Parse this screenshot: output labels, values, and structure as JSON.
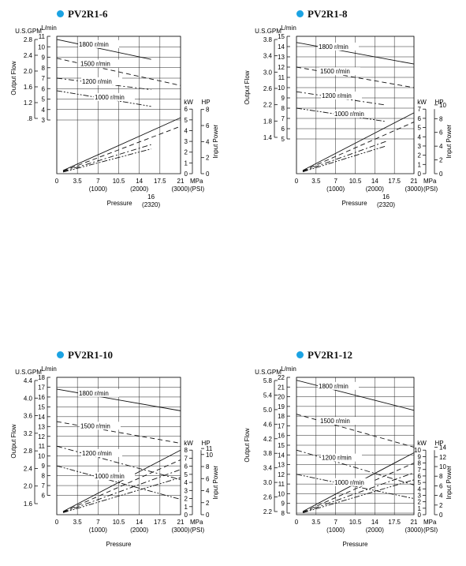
{
  "colors": {
    "accent": "#1ba3e3",
    "line": "#111111",
    "grid": "#222222"
  },
  "common": {
    "mpa_ticks": [
      "0",
      "3.5",
      "7",
      "10.5",
      "14",
      "17.5",
      "21"
    ],
    "psi_ticks": [
      "(1000)",
      "(2000)",
      "(3000)"
    ],
    "mpa_unit": "MPa",
    "psi_unit": "(PSI)",
    "x_title": "Pressure",
    "lmin_unit": "L/min",
    "gpm_unit": "U.S.GPM",
    "kw_unit": "kW",
    "hp_unit": "HP",
    "flow_title": "Output Flow",
    "power_title": "Input Power"
  },
  "chart_data": [
    {
      "type": "line",
      "title": "PV2R1-6",
      "x_unit": "MPa",
      "xlim": [
        0,
        21
      ],
      "extra_x_tick": {
        "mpa": "16",
        "psi": "(2320)"
      },
      "flow_ylim": [
        3,
        11
      ],
      "flow_ticks": [
        "3",
        "4",
        "5",
        "6",
        "7",
        "8",
        "9",
        "10",
        "11"
      ],
      "gpm_ticks": [
        "2.8",
        "2.4",
        "2.0",
        "1.6",
        "1.2",
        ".8"
      ],
      "power_kw_ticks": [
        "0",
        "1",
        "2",
        "3",
        "4",
        "5",
        "6"
      ],
      "power_hp_ticks": [
        "0",
        "2",
        "4",
        "6",
        "8"
      ],
      "series": [
        {
          "name": "1800 r/min",
          "flow": [
            [
              0,
              10.7
            ],
            [
              16,
              8.8
            ]
          ],
          "power_kw": [
            [
              0,
              0.3
            ],
            [
              21,
              5.2
            ]
          ]
        },
        {
          "name": "1500 r/min",
          "flow": [
            [
              0,
              8.9
            ],
            [
              21,
              6.3
            ]
          ],
          "power_kw": [
            [
              0,
              0.25
            ],
            [
              21,
              4.4
            ]
          ]
        },
        {
          "name": "1200 r/min",
          "flow": [
            [
              0,
              7.0
            ],
            [
              16,
              5.9
            ]
          ],
          "power_kw": [
            [
              0,
              0.2
            ],
            [
              16,
              2.7
            ]
          ]
        },
        {
          "name": "1000 r/min",
          "flow": [
            [
              0,
              5.8
            ],
            [
              16,
              4.3
            ]
          ],
          "power_kw": [
            [
              0,
              0.15
            ],
            [
              16,
              2.3
            ]
          ]
        }
      ]
    },
    {
      "type": "line",
      "title": "PV2R1-8",
      "x_unit": "MPa",
      "xlim": [
        0,
        21
      ],
      "extra_x_tick": {
        "mpa": "16",
        "psi": "(2320)"
      },
      "flow_ylim": [
        5,
        15
      ],
      "flow_ticks": [
        "5",
        "6",
        "7",
        "8",
        "9",
        "10",
        "11",
        "12",
        "13",
        "14",
        "15"
      ],
      "gpm_ticks": [
        "3.8",
        "3.4",
        "3.0",
        "2.6",
        "2.2",
        "1.8",
        "1.4"
      ],
      "power_kw_ticks": [
        "0",
        "1",
        "2",
        "3",
        "4",
        "5",
        "6",
        "7"
      ],
      "power_hp_ticks": [
        "0",
        "2",
        "4",
        "6",
        "8",
        "10"
      ],
      "series": [
        {
          "name": "1800 r/min",
          "flow": [
            [
              0,
              14.4
            ],
            [
              21,
              12.3
            ]
          ],
          "power_kw": [
            [
              0,
              0.35
            ],
            [
              21,
              6.6
            ]
          ]
        },
        {
          "name": "1500 r/min",
          "flow": [
            [
              0,
              12.0
            ],
            [
              21,
              10.0
            ]
          ],
          "power_kw": [
            [
              0,
              0.3
            ],
            [
              21,
              5.6
            ]
          ]
        },
        {
          "name": "1200 r/min",
          "flow": [
            [
              0,
              9.6
            ],
            [
              16,
              8.3
            ]
          ],
          "power_kw": [
            [
              0,
              0.25
            ],
            [
              16,
              3.5
            ]
          ]
        },
        {
          "name": "1000 r/min",
          "flow": [
            [
              0,
              8.0
            ],
            [
              16,
              6.7
            ]
          ],
          "power_kw": [
            [
              0,
              0.2
            ],
            [
              16,
              3.0
            ]
          ]
        }
      ]
    },
    {
      "type": "line",
      "title": "PV2R1-10",
      "x_unit": "MPa",
      "xlim": [
        0,
        21
      ],
      "flow_ylim": [
        5,
        18
      ],
      "flow_ticks": [
        "6",
        "7",
        "8",
        "9",
        "10",
        "11",
        "12",
        "13",
        "14",
        "15",
        "16",
        "17",
        "18"
      ],
      "gpm_ticks": [
        "4.4",
        "4.0",
        "3.6",
        "3.2",
        "2.8",
        "2.4",
        "2.0",
        "1.6"
      ],
      "power_kw_ticks": [
        "0",
        "1",
        "2",
        "3",
        "4",
        "5",
        "6",
        "7",
        "8"
      ],
      "power_hp_ticks": [
        "0",
        "2",
        "4",
        "6",
        "8",
        "10",
        "11"
      ],
      "series": [
        {
          "name": "1800 r/min",
          "flow": [
            [
              0,
              16.8
            ],
            [
              21,
              14.6
            ]
          ],
          "power_kw": [
            [
              0,
              0.4
            ],
            [
              21,
              8.0
            ]
          ]
        },
        {
          "name": "1500 r/min",
          "flow": [
            [
              0,
              13.5
            ],
            [
              21,
              11.3
            ]
          ],
          "power_kw": [
            [
              0,
              0.35
            ],
            [
              21,
              6.8
            ]
          ]
        },
        {
          "name": "1200 r/min",
          "flow": [
            [
              0,
              11.0
            ],
            [
              21,
              7.6
            ]
          ],
          "power_kw": [
            [
              0,
              0.3
            ],
            [
              21,
              5.6
            ]
          ]
        },
        {
          "name": "1000 r/min",
          "flow": [
            [
              0,
              9.0
            ],
            [
              21,
              5.6
            ]
          ],
          "power_kw": [
            [
              0,
              0.25
            ],
            [
              21,
              4.6
            ]
          ]
        }
      ]
    },
    {
      "type": "line",
      "title": "PV2R1-12",
      "x_unit": "MPa",
      "xlim": [
        0,
        21
      ],
      "flow_ylim": [
        8,
        22
      ],
      "flow_ticks": [
        "8",
        "9",
        "10",
        "11",
        "12",
        "13",
        "14",
        "15",
        "16",
        "17",
        "18",
        "19",
        "20",
        "21",
        "22"
      ],
      "gpm_ticks": [
        "5.8",
        "5.4",
        "5.0",
        "4.6",
        "4.2",
        "3.8",
        "3.4",
        "3.0",
        "2.6",
        "2.2"
      ],
      "power_kw_ticks": [
        "0",
        "1",
        "2",
        "3",
        "4",
        "5",
        "6",
        "7",
        "8",
        "9",
        "10"
      ],
      "power_hp_ticks": [
        "0",
        "2",
        "4",
        "6",
        "8",
        "10",
        "12",
        "14"
      ],
      "series": [
        {
          "name": "1800 r/min",
          "flow": [
            [
              0,
              21.7
            ],
            [
              21,
              18.6
            ]
          ],
          "power_kw": [
            [
              0,
              0.5
            ],
            [
              21,
              9.6
            ]
          ]
        },
        {
          "name": "1500 r/min",
          "flow": [
            [
              0,
              18.2
            ],
            [
              21,
              14.8
            ]
          ],
          "power_kw": [
            [
              0,
              0.4
            ],
            [
              21,
              8.0
            ]
          ]
        },
        {
          "name": "1200 r/min",
          "flow": [
            [
              0,
              14.5
            ],
            [
              21,
              10.9
            ]
          ],
          "power_kw": [
            [
              0,
              0.35
            ],
            [
              21,
              6.5
            ]
          ]
        },
        {
          "name": "1000 r/min",
          "flow": [
            [
              0,
              12.0
            ],
            [
              21,
              9.5
            ]
          ],
          "power_kw": [
            [
              0,
              0.3
            ],
            [
              21,
              5.4
            ]
          ]
        }
      ]
    }
  ]
}
